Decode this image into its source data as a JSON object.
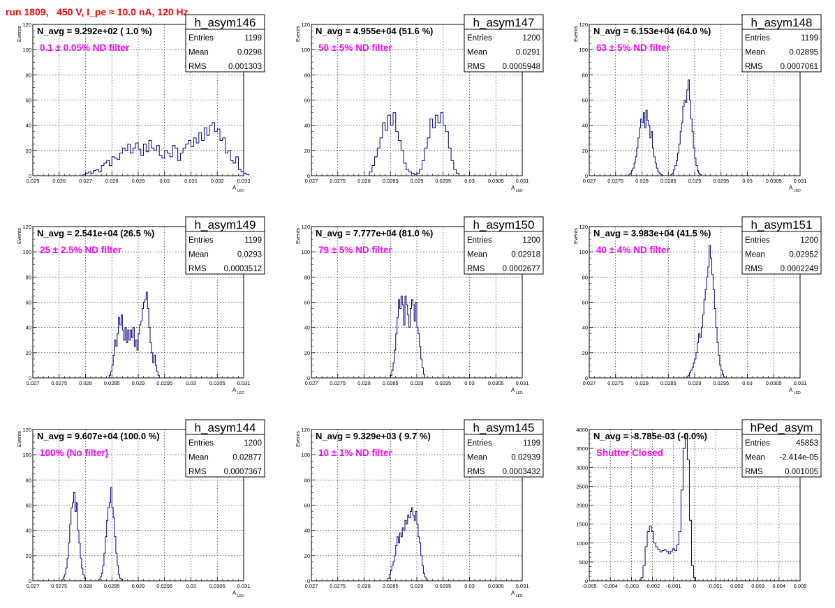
{
  "page_title": "run 1809,   450 V, I_pe ≈ 10.0 nA, 120 Hz",
  "colors": {
    "title": "#ff0000",
    "annotation": "#ff00ff",
    "histogram": "#000080",
    "grid": "#000000"
  },
  "chart_data": [
    {
      "type": "histogram",
      "name": "h_asym146",
      "navg": "N_avg = 9.292e+02 ( 1.0 %)",
      "filter": "0.1 ± 0.05% ND filter",
      "stats": [
        [
          "Entries",
          "1199"
        ],
        [
          "Mean",
          "0.0298"
        ],
        [
          "RMS",
          "0.001303"
        ]
      ],
      "xlim": [
        0.025,
        0.033
      ],
      "ylim": [
        0,
        120
      ],
      "xticks": [
        0.025,
        0.026,
        0.027,
        0.028,
        0.029,
        0.03,
        0.031,
        0.032,
        0.033
      ],
      "xtick_labels": [
        "0.025",
        "0.026",
        "0.027",
        "0.028",
        "0.029",
        "0.03",
        "0.031",
        "0.032",
        "0.033"
      ],
      "yticks": [
        0,
        20,
        40,
        60,
        80,
        100,
        120
      ],
      "ytick_labels": [
        "0",
        "20",
        "40",
        "60",
        "80",
        "100",
        "120"
      ],
      "xlabel": "A",
      "xlabel_sub": "LED",
      "ylabel": "Events",
      "grid": true,
      "bin_start": 0.0269,
      "bin_width": 0.0001,
      "counts": [
        1,
        2,
        3,
        2,
        4,
        5,
        3,
        8,
        10,
        12,
        8,
        15,
        14,
        13,
        18,
        22,
        20,
        25,
        18,
        22,
        26,
        21,
        16,
        25,
        19,
        28,
        22,
        20,
        24,
        16,
        14,
        20,
        18,
        15,
        24,
        22,
        12,
        18,
        22,
        25,
        28,
        23,
        30,
        26,
        34,
        28,
        38,
        32,
        40,
        42,
        35,
        37,
        28,
        30,
        18,
        20,
        12,
        10,
        15,
        5,
        3,
        2,
        1
      ]
    },
    {
      "type": "histogram",
      "name": "h_asym147",
      "navg": "N_avg = 4.955e+04 (51.6 %)",
      "filter": "50 ± 5% ND filter",
      "stats": [
        [
          "Entries",
          "1200"
        ],
        [
          "Mean",
          "0.0291"
        ],
        [
          "RMS",
          "0.0005948"
        ]
      ],
      "xlim": [
        0.027,
        0.031
      ],
      "ylim": [
        0,
        120
      ],
      "xticks": [
        0.027,
        0.0275,
        0.028,
        0.0285,
        0.029,
        0.0295,
        0.03,
        0.0305,
        0.031
      ],
      "xtick_labels": [
        "0.027",
        "0.0275",
        "0.028",
        "0.0285",
        "0.029",
        "0.0295",
        "0.03",
        "0.0305",
        "0.031"
      ],
      "yticks": [
        0,
        20,
        40,
        60,
        80,
        100,
        120
      ],
      "ytick_labels": [
        "0",
        "20",
        "40",
        "60",
        "80",
        "100",
        "120"
      ],
      "xlabel": "A",
      "xlabel_sub": "LED",
      "ylabel": "Events",
      "grid": true,
      "bin_start": 0.0281,
      "bin_width": 5e-05,
      "counts": [
        3,
        8,
        15,
        22,
        30,
        42,
        36,
        48,
        40,
        50,
        35,
        28,
        20,
        10,
        5,
        3,
        2,
        1,
        2,
        5,
        12,
        22,
        30,
        45,
        38,
        48,
        42,
        50,
        40,
        35,
        22,
        12,
        5,
        2
      ]
    },
    {
      "type": "histogram",
      "name": "h_asym148",
      "navg": "N_avg = 6.153e+04 (64.0 %)",
      "filter": "63 ± 5% ND filter",
      "stats": [
        [
          "Entries",
          "1199"
        ],
        [
          "Mean",
          "0.02895"
        ],
        [
          "RMS",
          "0.0007061"
        ]
      ],
      "xlim": [
        0.027,
        0.031
      ],
      "ylim": [
        0,
        120
      ],
      "xticks": [
        0.027,
        0.0275,
        0.028,
        0.0285,
        0.029,
        0.0295,
        0.03,
        0.0305,
        0.031
      ],
      "xtick_labels": [
        "0.027",
        "0.0275",
        "0.028",
        "0.0285",
        "0.029",
        "0.0295",
        "0.03",
        "0.0305",
        "0.031"
      ],
      "yticks": [
        0,
        20,
        40,
        60,
        80,
        100,
        120
      ],
      "ytick_labels": [
        "0",
        "20",
        "40",
        "60",
        "80",
        "100",
        "120"
      ],
      "xlabel": "A",
      "xlabel_sub": "LED",
      "ylabel": "Events",
      "grid": true,
      "bin_start": 0.02775,
      "bin_width": 2.5e-05,
      "counts": [
        1,
        2,
        4,
        6,
        10,
        15,
        22,
        30,
        38,
        45,
        42,
        50,
        38,
        52,
        44,
        40,
        30,
        35,
        22,
        15,
        10,
        6,
        3,
        2,
        1,
        0,
        0,
        0,
        0,
        0,
        0,
        0,
        1,
        2,
        5,
        8,
        12,
        18,
        25,
        35,
        42,
        55,
        60,
        58,
        68,
        76,
        60,
        45,
        35,
        22,
        14,
        8,
        4,
        2,
        1
      ]
    },
    {
      "type": "histogram",
      "name": "h_asym149",
      "navg": "N_avg = 2.541e+04 (26.5 %)",
      "filter": "25 ± 2.5% ND filter",
      "stats": [
        [
          "Entries",
          "1199"
        ],
        [
          "Mean",
          "0.0293"
        ],
        [
          "RMS",
          "0.0003512"
        ]
      ],
      "xlim": [
        0.027,
        0.031
      ],
      "ylim": [
        0,
        120
      ],
      "xticks": [
        0.027,
        0.0275,
        0.028,
        0.0285,
        0.029,
        0.0295,
        0.03,
        0.0305,
        0.031
      ],
      "xtick_labels": [
        "0.027",
        "0.0275",
        "0.028",
        "0.0285",
        "0.029",
        "0.0295",
        "0.03",
        "0.0305",
        "0.031"
      ],
      "yticks": [
        0,
        20,
        40,
        60,
        80,
        100,
        120
      ],
      "ytick_labels": [
        "0",
        "20",
        "40",
        "60",
        "80",
        "100",
        "120"
      ],
      "xlabel": "A",
      "xlabel_sub": "LED",
      "ylabel": "Events",
      "grid": true,
      "bin_start": 0.02845,
      "bin_width": 2.5e-05,
      "counts": [
        2,
        5,
        10,
        18,
        30,
        25,
        35,
        48,
        42,
        50,
        38,
        30,
        40,
        28,
        38,
        30,
        38,
        32,
        40,
        25,
        30,
        22,
        35,
        42,
        45,
        55,
        60,
        62,
        68,
        55,
        40,
        28,
        20,
        12,
        18,
        10,
        5,
        2
      ]
    },
    {
      "type": "histogram",
      "name": "h_asym150",
      "navg": "N_avg = 7.777e+04 (81.0 %)",
      "filter": "79 ± 5% ND filter",
      "stats": [
        [
          "Entries",
          "1200"
        ],
        [
          "Mean",
          "0.02918"
        ],
        [
          "RMS",
          "0.0002677"
        ]
      ],
      "xlim": [
        0.027,
        0.031
      ],
      "ylim": [
        0,
        120
      ],
      "xticks": [
        0.027,
        0.0275,
        0.028,
        0.0285,
        0.029,
        0.0295,
        0.03,
        0.0305,
        0.031
      ],
      "xtick_labels": [
        "0.027",
        "0.0275",
        "0.028",
        "0.0285",
        "0.029",
        "0.0295",
        "0.03",
        "0.0305",
        "0.031"
      ],
      "yticks": [
        0,
        20,
        40,
        60,
        80,
        100,
        120
      ],
      "ytick_labels": [
        "0",
        "20",
        "40",
        "60",
        "80",
        "100",
        "120"
      ],
      "xlabel": "A",
      "xlabel_sub": "LED",
      "ylabel": "Events",
      "grid": true,
      "bin_start": 0.0285,
      "bin_width": 2.5e-05,
      "counts": [
        2,
        6,
        12,
        22,
        35,
        48,
        62,
        55,
        65,
        58,
        42,
        65,
        58,
        50,
        40,
        55,
        62,
        58,
        45,
        60,
        40,
        35,
        25,
        15,
        8,
        3
      ]
    },
    {
      "type": "histogram",
      "name": "h_asym151",
      "navg": "N_avg = 3.983e+04 (41.5 %)",
      "filter": "40 ± 4% ND filter",
      "stats": [
        [
          "Entries",
          "1200"
        ],
        [
          "Mean",
          "0.02952"
        ],
        [
          "RMS",
          "0.0002249"
        ]
      ],
      "xlim": [
        0.027,
        0.031
      ],
      "ylim": [
        0,
        120
      ],
      "xticks": [
        0.027,
        0.0275,
        0.028,
        0.0285,
        0.029,
        0.0295,
        0.03,
        0.0305,
        0.031
      ],
      "xtick_labels": [
        "0.027",
        "0.0275",
        "0.028",
        "0.0285",
        "0.029",
        "0.0295",
        "0.03",
        "0.0305",
        "0.031"
      ],
      "yticks": [
        0,
        20,
        40,
        60,
        80,
        100,
        120
      ],
      "ytick_labels": [
        "0",
        "20",
        "40",
        "60",
        "80",
        "100",
        "120"
      ],
      "xlabel": "A",
      "xlabel_sub": "LED",
      "ylabel": "Events",
      "grid": true,
      "bin_start": 0.02885,
      "bin_width": 2.5e-05,
      "counts": [
        1,
        2,
        4,
        6,
        8,
        12,
        15,
        20,
        28,
        35,
        32,
        40,
        50,
        62,
        70,
        80,
        88,
        105,
        95,
        82,
        70,
        55,
        40,
        28,
        18,
        10,
        6,
        3,
        1
      ]
    },
    {
      "type": "histogram",
      "name": "h_asym144",
      "navg": "N_avg = 9.607e+04 (100.0 %)",
      "filter": "100% (No filter)",
      "stats": [
        [
          "Entries",
          "1200"
        ],
        [
          "Mean",
          "0.02877"
        ],
        [
          "RMS",
          "0.0007367"
        ]
      ],
      "xlim": [
        0.027,
        0.031
      ],
      "ylim": [
        0,
        120
      ],
      "xticks": [
        0.027,
        0.0275,
        0.028,
        0.0285,
        0.029,
        0.0295,
        0.03,
        0.0305,
        0.031
      ],
      "xtick_labels": [
        "0.027",
        "0.0275",
        "0.028",
        "0.0285",
        "0.029",
        "0.0295",
        "0.03",
        "0.0305",
        "0.031"
      ],
      "yticks": [
        0,
        20,
        40,
        60,
        80,
        100,
        120
      ],
      "ytick_labels": [
        "0",
        "20",
        "40",
        "60",
        "80",
        "100",
        "120"
      ],
      "xlabel": "A",
      "xlabel_sub": "LED",
      "ylabel": "Events",
      "grid": true,
      "bin_start": 0.02755,
      "bin_width": 2.5e-05,
      "counts": [
        1,
        3,
        5,
        10,
        18,
        30,
        45,
        58,
        62,
        70,
        55,
        62,
        40,
        30,
        18,
        10,
        5,
        2,
        0,
        0,
        0,
        0,
        0,
        0,
        0,
        0,
        0,
        0,
        1,
        3,
        6,
        12,
        22,
        35,
        48,
        58,
        62,
        74,
        58,
        50,
        35,
        22,
        12,
        5,
        2,
        1
      ]
    },
    {
      "type": "histogram",
      "name": "h_asym145",
      "navg": "N_avg = 9.329e+03 ( 9.7 %)",
      "filter": "10 ± 1% ND filter",
      "stats": [
        [
          "Entries",
          "1199"
        ],
        [
          "Mean",
          "0.02939"
        ],
        [
          "RMS",
          "0.0003432"
        ]
      ],
      "xlim": [
        0.027,
        0.031
      ],
      "ylim": [
        0,
        120
      ],
      "xticks": [
        0.027,
        0.0275,
        0.028,
        0.0285,
        0.029,
        0.0295,
        0.03,
        0.0305,
        0.031
      ],
      "xtick_labels": [
        "0.027",
        "0.0275",
        "0.028",
        "0.0285",
        "0.029",
        "0.0295",
        "0.03",
        "0.0305",
        "0.031"
      ],
      "yticks": [
        0,
        20,
        40,
        60,
        80,
        100,
        120
      ],
      "ytick_labels": [
        "0",
        "20",
        "40",
        "60",
        "80",
        "100",
        "120"
      ],
      "xlabel": "A",
      "xlabel_sub": "LED",
      "ylabel": "Events",
      "grid": true,
      "bin_start": 0.02845,
      "bin_width": 2.5e-05,
      "counts": [
        2,
        5,
        8,
        12,
        15,
        20,
        28,
        35,
        30,
        38,
        35,
        42,
        40,
        48,
        45,
        52,
        50,
        55,
        58,
        52,
        48,
        55,
        45,
        35,
        30,
        20,
        12,
        6,
        3,
        1
      ]
    },
    {
      "type": "histogram",
      "name": "hPed_asym",
      "navg": "N_avg = -8.785e-03 (-0.0%)",
      "filter": "Shutter Closed",
      "stats": [
        [
          "Entries",
          "45853"
        ],
        [
          "Mean",
          "-2.414e-05"
        ],
        [
          "RMS",
          "0.001005"
        ]
      ],
      "xlim": [
        -0.005,
        0.005
      ],
      "ylim": [
        0,
        4000
      ],
      "xticks": [
        -0.005,
        -0.004,
        -0.003,
        -0.002,
        -0.001,
        0,
        0.001,
        0.002,
        0.003,
        0.004,
        0.005
      ],
      "xtick_labels": [
        "-0.005",
        "-0.004",
        "-0.003",
        "-0.002",
        "-0.001",
        "0",
        "0.001",
        "0.002",
        "0.003",
        "0.004",
        "0.005"
      ],
      "yticks": [
        0,
        500,
        1000,
        1500,
        2000,
        2500,
        3000,
        3500,
        4000
      ],
      "ytick_labels": [
        "0",
        "500",
        "1000",
        "1500",
        "2000",
        "2500",
        "3000",
        "3500",
        "4000"
      ],
      "xlabel": "",
      "xlabel_sub": "",
      "ylabel": "",
      "grid": true,
      "bin_start": -0.00255,
      "bin_width": 0.0001,
      "counts": [
        80,
        400,
        900,
        1300,
        1450,
        1300,
        1000,
        900,
        820,
        760,
        800,
        820,
        780,
        720,
        780,
        850,
        800,
        950,
        1300,
        2400,
        3500,
        3900,
        3200,
        1600,
        400,
        80
      ]
    }
  ]
}
